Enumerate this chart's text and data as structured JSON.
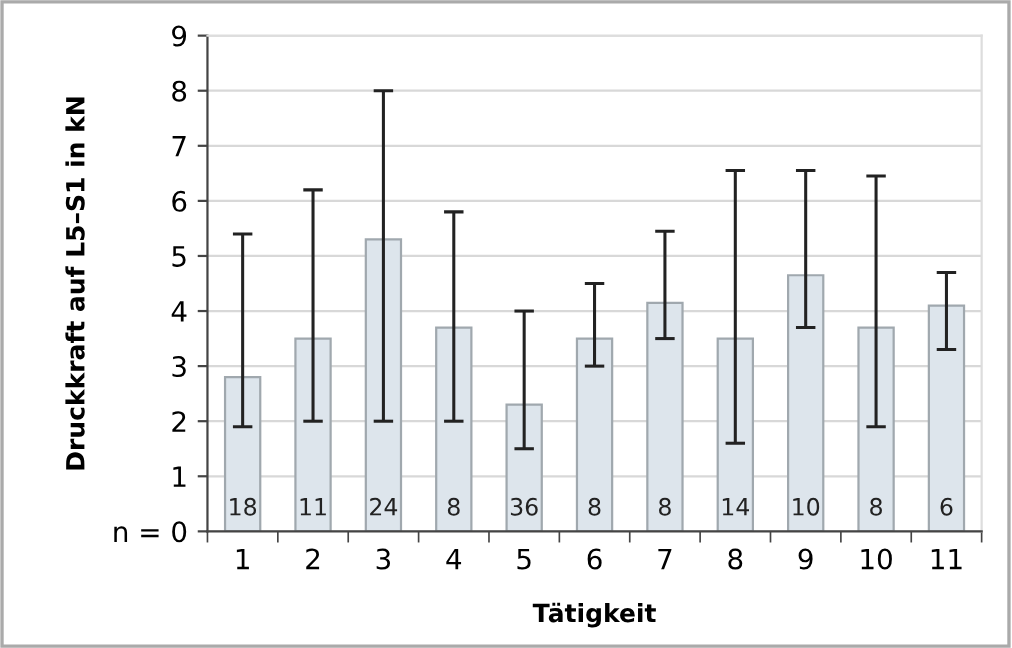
{
  "chart_data": {
    "type": "bar",
    "xlabel": "Tätigkeit",
    "ylabel": "Druckkraft auf L5–S1 in kN",
    "categories": [
      "1",
      "2",
      "3",
      "4",
      "5",
      "6",
      "7",
      "8",
      "9",
      "10",
      "11"
    ],
    "values": [
      2.8,
      3.5,
      5.3,
      3.7,
      2.3,
      3.5,
      4.15,
      3.5,
      4.65,
      3.7,
      4.1
    ],
    "errors": [
      [
        1.9,
        5.4
      ],
      [
        2.0,
        6.2
      ],
      [
        2.0,
        8.0
      ],
      [
        2.0,
        5.8
      ],
      [
        1.5,
        4.0
      ],
      [
        3.0,
        4.5
      ],
      [
        3.5,
        5.45
      ],
      [
        1.6,
        6.55
      ],
      [
        3.7,
        6.55
      ],
      [
        1.9,
        6.45
      ],
      [
        3.3,
        4.7
      ]
    ],
    "color": "#dde5ec",
    "ylim": [
      0,
      9
    ],
    "yticks": [
      {
        "value": 0,
        "label": "n = 0"
      },
      1,
      2,
      3,
      4,
      5,
      6,
      7,
      8,
      9
    ],
    "grid": "y",
    "annotations": [
      {
        "text": "18",
        "x": "1",
        "y": 0
      },
      {
        "text": "11",
        "x": "2",
        "y": 0
      },
      {
        "text": "24",
        "x": "3",
        "y": 0
      },
      {
        "text": "8",
        "x": "4",
        "y": 0
      },
      {
        "text": "36",
        "x": "5",
        "y": 0
      },
      {
        "text": "8",
        "x": "6",
        "y": 0
      },
      {
        "text": "8",
        "x": "7",
        "y": 0
      },
      {
        "text": "14",
        "x": "8",
        "y": 0
      },
      {
        "text": "10",
        "x": "9",
        "y": 0
      },
      {
        "text": "8",
        "x": "10",
        "y": 0
      },
      {
        "text": "6",
        "x": "11",
        "y": 0
      }
    ]
  }
}
